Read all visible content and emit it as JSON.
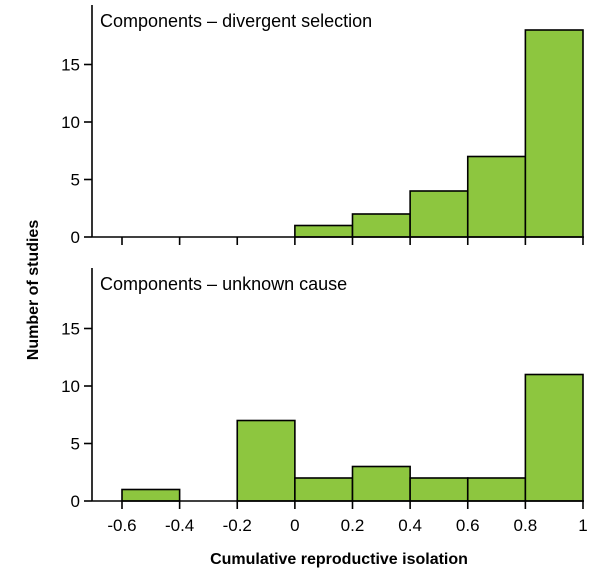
{
  "chart_data": {
    "type": "bar",
    "ylabel": "Number of studies",
    "xlabel": "Cumulative reproductive isolation",
    "bar_color": "#8dc63f",
    "bin_edges": [
      -0.6,
      -0.4,
      -0.2,
      0,
      0.2,
      0.4,
      0.6,
      0.8,
      1.0
    ],
    "x_tick_labels": [
      "-0.6",
      "-0.4",
      "-0.2",
      "0",
      "0.2",
      "0.4",
      "0.6",
      "0.8",
      "1"
    ],
    "y_ticks": [
      0,
      5,
      10,
      15
    ],
    "y_tick_labels": [
      "0",
      "5",
      "10",
      "15"
    ],
    "ylim": [
      0,
      19
    ],
    "xlim": [
      -0.6,
      1.0
    ],
    "panels": [
      {
        "title": "Components – divergent selection",
        "values": [
          0,
          0,
          0,
          1,
          2,
          4,
          7,
          18
        ]
      },
      {
        "title": "Components – unknown cause",
        "values": [
          1,
          0,
          7,
          2,
          3,
          2,
          2,
          11
        ]
      }
    ]
  }
}
